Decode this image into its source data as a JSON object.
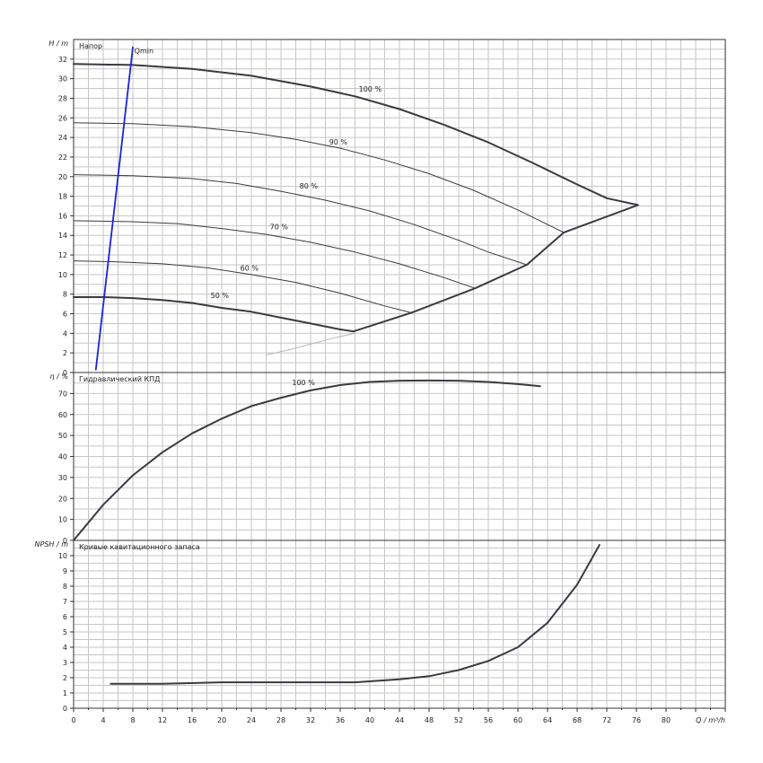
{
  "chart_data": [
    {
      "type": "line",
      "title": "Напор",
      "ylabel": "H / m",
      "xlim": [
        0,
        88
      ],
      "ylim": [
        0,
        34
      ],
      "xticks": [
        0,
        4,
        8,
        12,
        16,
        20,
        24,
        28,
        32,
        36,
        40,
        44,
        48,
        52,
        56,
        60,
        64,
        68,
        72,
        76,
        80
      ],
      "yticks": [
        0,
        2,
        4,
        6,
        8,
        10,
        12,
        14,
        16,
        18,
        20,
        22,
        24,
        26,
        28,
        30,
        32
      ],
      "grid": true,
      "series": [
        {
          "name": "100 %",
          "x": [
            0,
            8,
            16,
            24,
            32,
            38,
            44,
            50,
            56,
            62,
            68,
            72,
            76.2
          ],
          "y": [
            31.5,
            31.4,
            31.0,
            30.3,
            29.2,
            28.2,
            26.9,
            25.3,
            23.5,
            21.4,
            19.2,
            17.8,
            17.1
          ],
          "label_at": [
            38.5,
            28.7
          ]
        },
        {
          "name": "90 %",
          "x": [
            0,
            8,
            16,
            24,
            30,
            36,
            42,
            48,
            54,
            60,
            66.2
          ],
          "y": [
            25.5,
            25.4,
            25.1,
            24.5,
            23.8,
            22.9,
            21.7,
            20.3,
            18.6,
            16.6,
            14.3
          ],
          "label_at": [
            34.5,
            23.3
          ]
        },
        {
          "name": "80 %",
          "x": [
            0,
            8,
            16,
            22,
            28,
            34,
            40,
            46,
            52,
            56,
            61.2
          ],
          "y": [
            20.2,
            20.1,
            19.8,
            19.3,
            18.5,
            17.6,
            16.5,
            15.1,
            13.5,
            12.3,
            11.0
          ],
          "label_at": [
            30.5,
            18.8
          ]
        },
        {
          "name": "70 %",
          "x": [
            0,
            8,
            14,
            20,
            26,
            32,
            38,
            44,
            50,
            54.2
          ],
          "y": [
            15.5,
            15.4,
            15.2,
            14.7,
            14.1,
            13.3,
            12.3,
            11.1,
            9.7,
            8.6
          ],
          "label_at": [
            26.5,
            14.6
          ]
        },
        {
          "name": "60 %",
          "x": [
            0,
            6,
            12,
            18,
            24,
            30,
            36,
            42,
            45.6
          ],
          "y": [
            11.4,
            11.3,
            11.1,
            10.7,
            10.0,
            9.2,
            8.1,
            6.8,
            6.1
          ],
          "label_at": [
            22.5,
            10.4
          ]
        },
        {
          "name": "50 %",
          "x": [
            0,
            4,
            8,
            12,
            16,
            20,
            24,
            28,
            32,
            36,
            37.8
          ],
          "y": [
            7.7,
            7.7,
            7.6,
            7.4,
            7.1,
            6.6,
            6.2,
            5.6,
            5.0,
            4.4,
            4.2
          ],
          "label_at": [
            18.5,
            7.6
          ]
        },
        {
          "name": "",
          "x": [
            26,
            29,
            32,
            35,
            38
          ],
          "y": [
            1.8,
            2.3,
            2.9,
            3.5,
            4.0
          ]
        },
        {
          "name": "",
          "x": [
            37.8,
            45.6,
            54.2,
            61.2,
            66.2,
            76.2
          ],
          "y": [
            4.2,
            6.1,
            8.6,
            11.0,
            14.3,
            17.1
          ]
        },
        {
          "name": "Qmin",
          "x": [
            3.0,
            8.0
          ],
          "y": [
            0.3,
            33.2
          ],
          "label_at": [
            8.2,
            32.6
          ]
        }
      ]
    },
    {
      "type": "line",
      "title": "Гидравлический КПД",
      "ylabel": "η / %",
      "xlim": [
        0,
        88
      ],
      "ylim": [
        0,
        80
      ],
      "yticks": [
        0,
        10,
        20,
        30,
        40,
        50,
        60,
        70
      ],
      "grid": true,
      "series": [
        {
          "name": "100 %",
          "x": [
            0,
            4,
            8,
            12,
            16,
            20,
            24,
            28,
            32,
            36,
            40,
            44,
            48,
            52,
            56,
            60,
            63
          ],
          "y": [
            0,
            17,
            31,
            42,
            51,
            58,
            64,
            68,
            71.5,
            74,
            75.5,
            76.1,
            76.2,
            76.1,
            75.5,
            74.5,
            73.5
          ],
          "label_at": [
            29.5,
            74
          ]
        }
      ]
    },
    {
      "type": "line",
      "title": "Кривые кавитационного запаса",
      "ylabel": "NPSH / m",
      "xlabel": "Q / m³/h",
      "xlim": [
        0,
        88
      ],
      "ylim": [
        0,
        11
      ],
      "yticks": [
        0,
        1,
        2,
        3,
        4,
        5,
        6,
        7,
        8,
        9,
        10
      ],
      "grid": true,
      "series": [
        {
          "name": "",
          "x": [
            5,
            12,
            20,
            30,
            38,
            44,
            48,
            52,
            56,
            60,
            64,
            68,
            71
          ],
          "y": [
            1.6,
            1.6,
            1.7,
            1.7,
            1.7,
            1.9,
            2.1,
            2.5,
            3.1,
            4.0,
            5.6,
            8.1,
            10.7
          ]
        }
      ]
    }
  ]
}
